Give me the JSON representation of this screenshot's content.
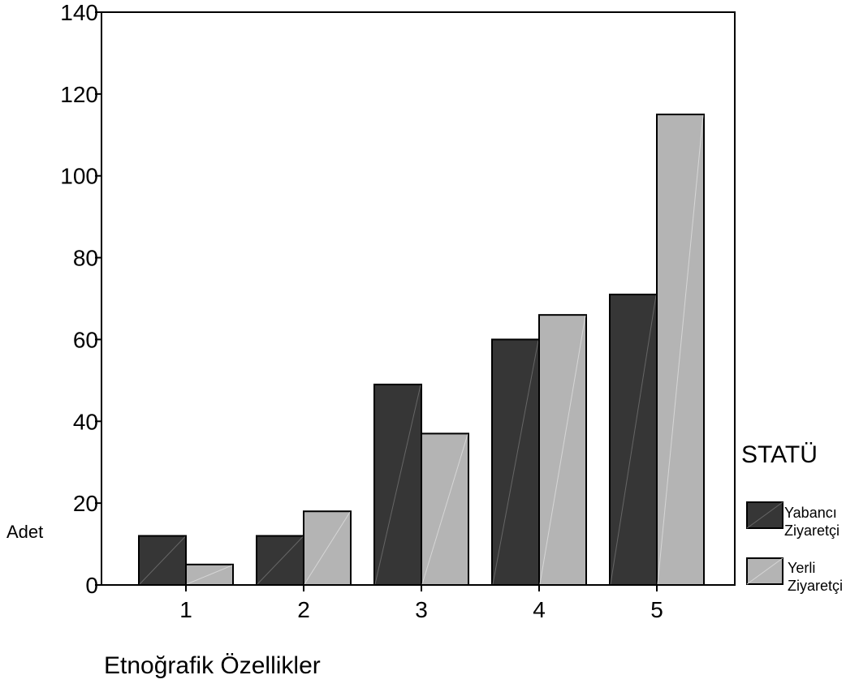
{
  "chart_data": {
    "type": "bar",
    "title": "",
    "xlabel": "Etnoğrafik Özellikler",
    "ylabel": "Adet",
    "categories": [
      "1",
      "2",
      "3",
      "4",
      "5"
    ],
    "series": [
      {
        "name": "Yabancı Ziyaretçi",
        "values": [
          12,
          12,
          49,
          60,
          71
        ],
        "color": "#363636"
      },
      {
        "name": "Yerli Ziyaretçi",
        "values": [
          5,
          18,
          37,
          66,
          115
        ],
        "color": "#b4b4b4"
      }
    ],
    "yticks": [
      "0",
      "20",
      "40",
      "60",
      "80",
      "100",
      "120",
      "140"
    ],
    "ylim": [
      0,
      140
    ],
    "grid": false,
    "legend": {
      "title": "STATÜ",
      "placement": "right",
      "items": [
        {
          "line1": "Yabancı",
          "line2": "Ziyaretçi"
        },
        {
          "line1": "Yerli",
          "line2": "Ziyaretçi"
        }
      ]
    }
  }
}
